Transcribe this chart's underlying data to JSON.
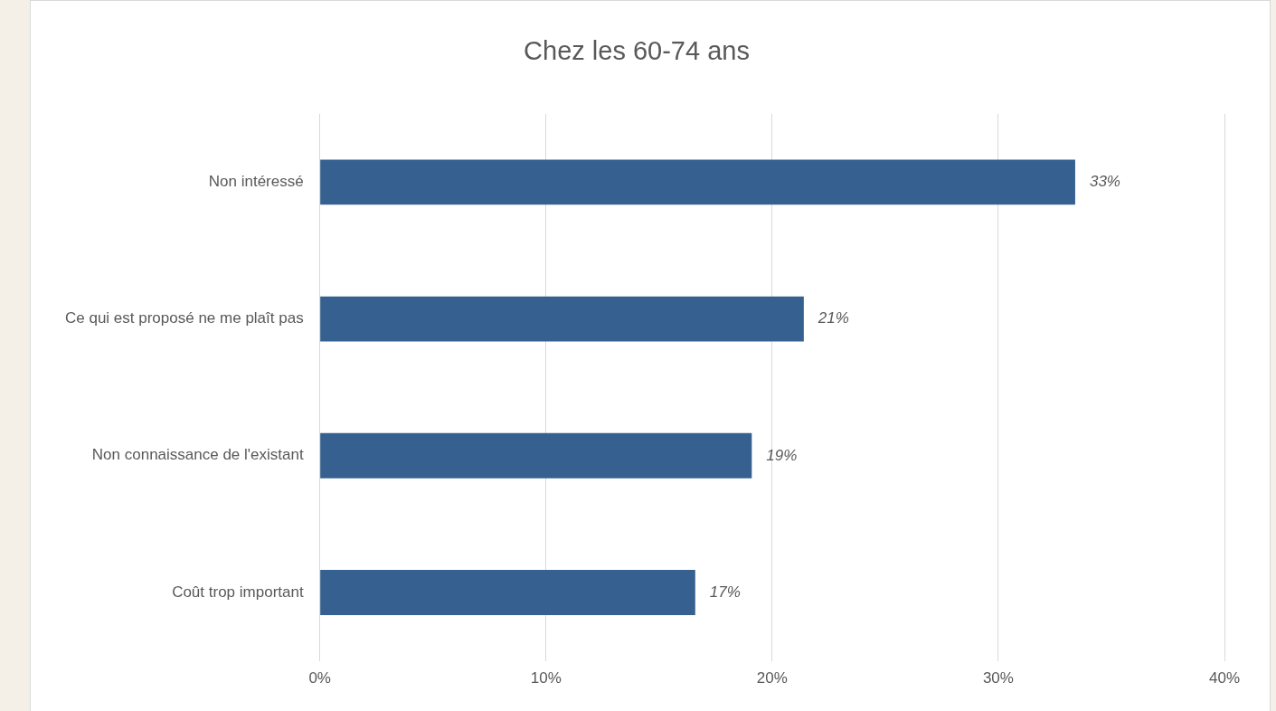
{
  "chart_data": {
    "type": "bar",
    "orientation": "horizontal",
    "title": "Chez les 60-74 ans",
    "categories": [
      "Non intéressé",
      "Ce qui est proposé ne me plaît pas",
      "Non connaissance de l'existant",
      "Coût trop important"
    ],
    "values": [
      33.4,
      21.4,
      19.1,
      16.6
    ],
    "value_labels": [
      "33%",
      "21%",
      "19%",
      "17%"
    ],
    "color": "#36608f",
    "xlim": [
      0,
      40
    ],
    "xticks": [
      {
        "value": 0,
        "label": "0%"
      },
      {
        "value": 10,
        "label": "10%"
      },
      {
        "value": 20,
        "label": "20%"
      },
      {
        "value": 30,
        "label": "30%"
      },
      {
        "value": 40,
        "label": "40%"
      }
    ],
    "grid": "x",
    "legend": false
  }
}
